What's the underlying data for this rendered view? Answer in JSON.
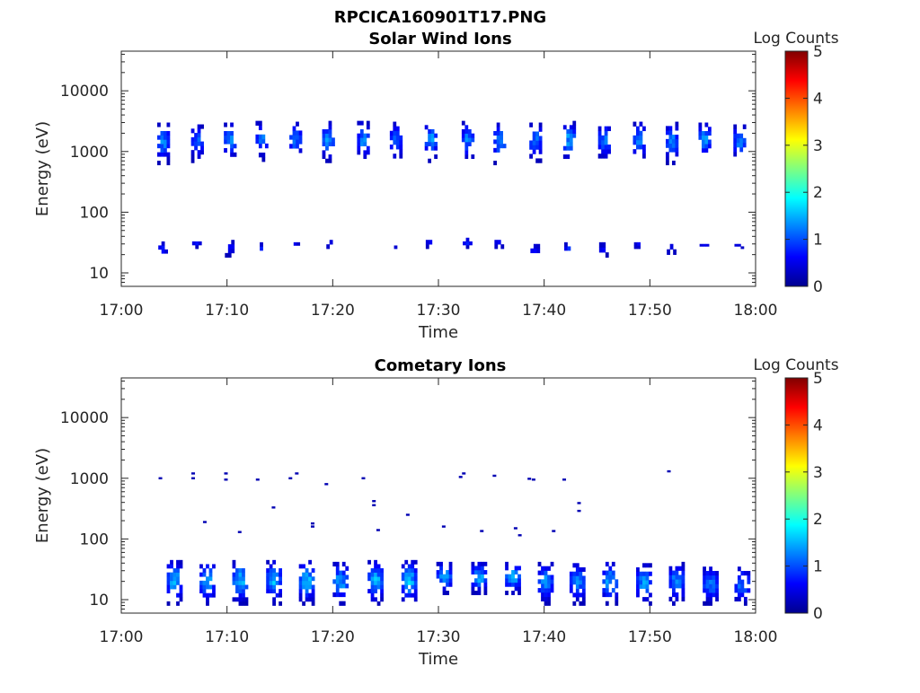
{
  "figure": {
    "title": "RPCICA160901T17.PNG"
  },
  "chart_data": [
    {
      "type": "heatmap",
      "title": "Solar Wind Ions",
      "xlabel": "Time",
      "ylabel": "Energy (eV)",
      "x_range": [
        "17:00",
        "18:00"
      ],
      "x_ticks": [
        "17:00",
        "17:10",
        "17:20",
        "17:30",
        "17:40",
        "17:50",
        "18:00"
      ],
      "y_scale": "log",
      "y_range": [
        6,
        45000
      ],
      "y_ticks": [
        "10",
        "100",
        "1000",
        "10000"
      ],
      "y_tick_values": [
        10,
        100,
        1000,
        10000
      ],
      "colorbar": {
        "label": "Log Counts",
        "range": [
          0,
          5
        ],
        "ticks": [
          "0",
          "1",
          "2",
          "3",
          "4",
          "5"
        ],
        "colormap": "jet"
      },
      "bursts": [
        {
          "time_min": 3.8,
          "low_band": [
            18,
            33
          ],
          "high_band": [
            600,
            3000
          ],
          "peak_log_counts": 1.5
        },
        {
          "time_min": 7.0,
          "low_band": [
            25,
            38
          ],
          "high_band": [
            650,
            2800
          ],
          "peak_log_counts": 1.3
        },
        {
          "time_min": 10.1,
          "low_band": [
            18,
            35
          ],
          "high_band": [
            700,
            3000
          ],
          "peak_log_counts": 1.6
        },
        {
          "time_min": 13.1,
          "low_band": [
            20,
            32
          ],
          "high_band": [
            680,
            3200
          ],
          "peak_log_counts": 1.4
        },
        {
          "time_min": 16.3,
          "low_band": [
            25,
            32
          ],
          "high_band": [
            680,
            3100
          ],
          "peak_log_counts": 1.4
        },
        {
          "time_min": 19.4,
          "low_band": [
            25,
            35
          ],
          "high_band": [
            650,
            3200
          ],
          "peak_log_counts": 1.6
        },
        {
          "time_min": 22.7,
          "low_band": [
            22,
            32
          ],
          "high_band": [
            650,
            3200
          ],
          "peak_log_counts": 1.5
        },
        {
          "time_min": 25.8,
          "low_band": [
            25,
            32
          ],
          "high_band": [
            650,
            3100
          ],
          "peak_log_counts": 1.4
        },
        {
          "time_min": 29.1,
          "low_band": [
            25,
            35
          ],
          "high_band": [
            650,
            3200
          ],
          "peak_log_counts": 1.6
        },
        {
          "time_min": 32.6,
          "low_band": [
            25,
            38
          ],
          "high_band": [
            650,
            3200
          ],
          "peak_log_counts": 1.5
        },
        {
          "time_min": 35.6,
          "low_band": [
            25,
            35
          ],
          "high_band": [
            600,
            3000
          ],
          "peak_log_counts": 1.6
        },
        {
          "time_min": 39.0,
          "low_band": [
            18,
            30
          ],
          "high_band": [
            650,
            3000
          ],
          "peak_log_counts": 1.5
        },
        {
          "time_min": 42.2,
          "low_band": [
            20,
            32
          ],
          "high_band": [
            650,
            3200
          ],
          "peak_log_counts": 1.7
        },
        {
          "time_min": 45.5,
          "low_band": [
            18,
            32
          ],
          "high_band": [
            650,
            3100
          ],
          "peak_log_counts": 1.4
        },
        {
          "time_min": 48.8,
          "low_band": [
            25,
            32
          ],
          "high_band": [
            650,
            3100
          ],
          "peak_log_counts": 1.5
        },
        {
          "time_min": 51.9,
          "low_band": [
            20,
            30
          ],
          "high_band": [
            600,
            3100
          ],
          "peak_log_counts": 1.5
        },
        {
          "time_min": 55.0,
          "low_band": [
            25,
            30
          ],
          "high_band": [
            700,
            3000
          ],
          "peak_log_counts": 1.6
        },
        {
          "time_min": 58.3,
          "low_band": [
            25,
            30
          ],
          "high_band": [
            700,
            2800
          ],
          "peak_log_counts": 1.5
        }
      ]
    },
    {
      "type": "heatmap",
      "title": "Cometary Ions",
      "xlabel": "Time",
      "ylabel": "Energy (eV)",
      "x_range": [
        "17:00",
        "18:00"
      ],
      "x_ticks": [
        "17:00",
        "17:10",
        "17:20",
        "17:30",
        "17:40",
        "17:50",
        "18:00"
      ],
      "y_scale": "log",
      "y_range": [
        6,
        45000
      ],
      "y_ticks": [
        "10",
        "100",
        "1000",
        "10000"
      ],
      "y_tick_values": [
        10,
        100,
        1000,
        10000
      ],
      "colorbar": {
        "label": "Log Counts",
        "range": [
          0,
          5
        ],
        "ticks": [
          "0",
          "1",
          "2",
          "3",
          "4",
          "5"
        ],
        "colormap": "jet"
      },
      "bursts": [
        {
          "time_min": 4.6,
          "low_band": [
            8,
            45
          ],
          "peak_log_counts": 1.8
        },
        {
          "time_min": 7.7,
          "low_band": [
            8,
            45
          ],
          "peak_log_counts": 1.8
        },
        {
          "time_min": 10.8,
          "low_band": [
            8,
            45
          ],
          "peak_log_counts": 1.9
        },
        {
          "time_min": 14.0,
          "low_band": [
            8,
            45
          ],
          "peak_log_counts": 1.8
        },
        {
          "time_min": 17.1,
          "low_band": [
            8,
            45
          ],
          "peak_log_counts": 1.9
        },
        {
          "time_min": 20.3,
          "low_band": [
            8,
            42
          ],
          "peak_log_counts": 1.7
        },
        {
          "time_min": 23.6,
          "low_band": [
            8,
            45
          ],
          "peak_log_counts": 1.8
        },
        {
          "time_min": 26.8,
          "low_band": [
            8,
            45
          ],
          "peak_log_counts": 1.9
        },
        {
          "time_min": 30.1,
          "low_band": [
            12,
            42
          ],
          "peak_log_counts": 1.7
        },
        {
          "time_min": 33.4,
          "low_band": [
            12,
            42
          ],
          "peak_log_counts": 1.8
        },
        {
          "time_min": 36.6,
          "low_band": [
            12,
            42
          ],
          "peak_log_counts": 1.8
        },
        {
          "time_min": 39.7,
          "low_band": [
            8,
            42
          ],
          "peak_log_counts": 1.6
        },
        {
          "time_min": 42.7,
          "low_band": [
            8,
            40
          ],
          "peak_log_counts": 1.6
        },
        {
          "time_min": 45.8,
          "low_band": [
            8,
            42
          ],
          "peak_log_counts": 1.7
        },
        {
          "time_min": 49.0,
          "low_band": [
            8,
            40
          ],
          "peak_log_counts": 1.6
        },
        {
          "time_min": 52.1,
          "low_band": [
            8,
            42
          ],
          "peak_log_counts": 1.6
        },
        {
          "time_min": 55.3,
          "low_band": [
            8,
            35
          ],
          "peak_log_counts": 1.5
        },
        {
          "time_min": 58.3,
          "low_band": [
            8,
            35
          ],
          "peak_log_counts": 1.4
        }
      ],
      "sparse_points": [
        {
          "time_min": 3.7,
          "energy": 1000
        },
        {
          "time_min": 6.8,
          "energy": 1200
        },
        {
          "time_min": 6.8,
          "energy": 1000
        },
        {
          "time_min": 9.9,
          "energy": 1200
        },
        {
          "time_min": 9.9,
          "energy": 950
        },
        {
          "time_min": 12.9,
          "energy": 950
        },
        {
          "time_min": 16.0,
          "energy": 1000
        },
        {
          "time_min": 16.6,
          "energy": 1200
        },
        {
          "time_min": 19.4,
          "energy": 800
        },
        {
          "time_min": 22.9,
          "energy": 1000
        },
        {
          "time_min": 7.9,
          "energy": 190
        },
        {
          "time_min": 11.2,
          "energy": 130
        },
        {
          "time_min": 14.4,
          "energy": 330
        },
        {
          "time_min": 18.1,
          "energy": 180
        },
        {
          "time_min": 18.1,
          "energy": 160
        },
        {
          "time_min": 23.9,
          "energy": 420
        },
        {
          "time_min": 23.9,
          "energy": 360
        },
        {
          "time_min": 24.3,
          "energy": 140
        },
        {
          "time_min": 27.1,
          "energy": 250
        },
        {
          "time_min": 30.5,
          "energy": 160
        },
        {
          "time_min": 32.1,
          "energy": 1050
        },
        {
          "time_min": 32.4,
          "energy": 1200
        },
        {
          "time_min": 34.1,
          "energy": 135
        },
        {
          "time_min": 35.3,
          "energy": 1100
        },
        {
          "time_min": 37.3,
          "energy": 150
        },
        {
          "time_min": 37.7,
          "energy": 115
        },
        {
          "time_min": 38.6,
          "energy": 980
        },
        {
          "time_min": 39.0,
          "energy": 950
        },
        {
          "time_min": 40.9,
          "energy": 135
        },
        {
          "time_min": 41.9,
          "energy": 950
        },
        {
          "time_min": 43.3,
          "energy": 390
        },
        {
          "time_min": 43.3,
          "energy": 290
        },
        {
          "time_min": 51.8,
          "energy": 1300
        }
      ]
    }
  ]
}
